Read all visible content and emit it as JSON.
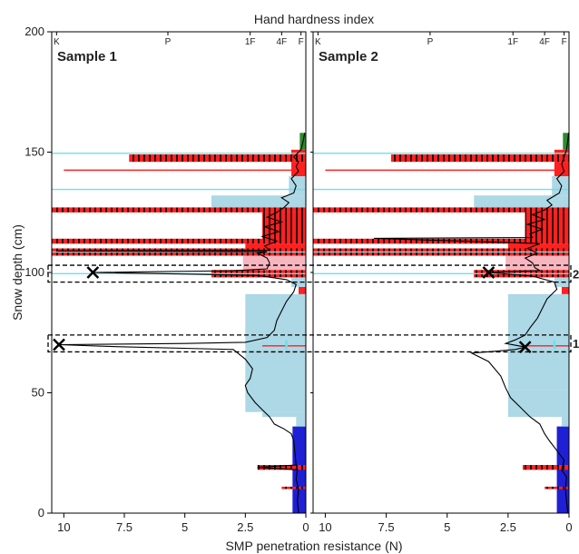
{
  "chart_data": {
    "type": "line",
    "title": "Hand hardness index",
    "xlabel": "SMP penetration resistance (N)",
    "ylabel": "Snow depth (cm)",
    "xlim": [
      10.5,
      0
    ],
    "ylim": [
      0,
      200
    ],
    "x_ticks": [
      10,
      7.5,
      5,
      2.5,
      0
    ],
    "x_tick_labels": [
      "10",
      "7.5",
      "5",
      "2.5",
      "0"
    ],
    "y_ticks": [
      0,
      50,
      100,
      150,
      200
    ],
    "y_tick_labels": [
      "0",
      "50",
      "100",
      "150",
      "200"
    ],
    "hardness_ticks": [
      {
        "label": "K",
        "x": 10.3
      },
      {
        "label": "P",
        "x": 5.7
      },
      {
        "label": "1F",
        "x": 2.3
      },
      {
        "label": "4F",
        "x": 1.0
      },
      {
        "label": "F",
        "x": 0.2
      }
    ],
    "colors": {
      "light_blue": "#add8e6",
      "red": "#ff2020",
      "pink": "#f7b6bf",
      "dark_blue": "#1f1fd6",
      "green": "#2e8b2e",
      "cyan_line": "#6fe0e6",
      "profile": "#000000"
    },
    "band_annotations": [
      {
        "label": "2",
        "depth_range": [
          96,
          103
        ]
      },
      {
        "label": "1",
        "depth_range": [
          67,
          74
        ]
      }
    ],
    "panels": [
      {
        "name": "Sample 1",
        "layers": [
          {
            "from": 0,
            "to": 36,
            "hardness": 0.55,
            "color": "dark_blue"
          },
          {
            "from": 36,
            "to": 40,
            "hardness": 0.4,
            "color": "light_blue"
          },
          {
            "from": 40,
            "to": 42,
            "hardness": 1.8,
            "color": "light_blue"
          },
          {
            "from": 42,
            "to": 91,
            "hardness": 2.5,
            "color": "light_blue"
          },
          {
            "from": 91,
            "to": 94,
            "hardness": 0.3,
            "color": "red"
          },
          {
            "from": 94,
            "to": 98,
            "hardness": 0.6,
            "color": "light_blue"
          },
          {
            "from": 98,
            "to": 101,
            "hardness": 3.9,
            "color": "red"
          },
          {
            "from": 101,
            "to": 107,
            "hardness": 2.6,
            "color": "pink"
          },
          {
            "from": 107,
            "to": 110,
            "hardness": 10.5,
            "color": "red"
          },
          {
            "from": 110,
            "to": 112,
            "hardness": 2.5,
            "color": "red"
          },
          {
            "from": 112,
            "to": 114,
            "hardness": 10.5,
            "color": "red"
          },
          {
            "from": 114,
            "to": 125,
            "hardness": 1.8,
            "color": "red"
          },
          {
            "from": 125,
            "to": 127,
            "hardness": 10.5,
            "color": "red"
          },
          {
            "from": 127,
            "to": 132,
            "hardness": 3.9,
            "color": "light_blue"
          },
          {
            "from": 132,
            "to": 140,
            "hardness": 0.7,
            "color": "light_blue"
          },
          {
            "from": 140,
            "to": 146,
            "hardness": 0.6,
            "color": "red"
          },
          {
            "from": 146,
            "to": 149,
            "hardness": 7.3,
            "color": "red"
          },
          {
            "from": 149,
            "to": 151,
            "hardness": 0.6,
            "color": "red"
          },
          {
            "from": 151,
            "to": 158,
            "hardness": 0.25,
            "color": "green"
          }
        ],
        "hatched_layers": [
          {
            "from": 18,
            "to": 20,
            "hardness": 2.0
          },
          {
            "from": 10,
            "to": 11,
            "hardness": 1.0
          },
          {
            "from": 98,
            "to": 101,
            "hardness": 3.9
          },
          {
            "from": 107,
            "to": 110,
            "hardness": 10.5
          },
          {
            "from": 112,
            "to": 114,
            "hardness": 10.5
          },
          {
            "from": 125,
            "to": 127,
            "hardness": 10.5
          },
          {
            "from": 146,
            "to": 149,
            "hardness": 7.3
          },
          {
            "from": 114,
            "to": 125,
            "hardness": 1.8
          }
        ],
        "red_lines": [
          {
            "depth": 142.5,
            "hardness": 10.0
          },
          {
            "depth": 69.5,
            "hardness": 1.8
          }
        ],
        "cyan_lines": [
          {
            "depth": 149.5,
            "hardness": 10.5
          },
          {
            "depth": 134.5,
            "hardness": 10.5
          },
          {
            "depth": 108.5,
            "hardness": 10.5
          },
          {
            "depth": 99.5,
            "hardness": 10.5
          }
        ],
        "cyan_marks": [
          {
            "depth": 70,
            "hardness": 0.8
          }
        ],
        "markers": [
          {
            "x": 8.8,
            "y": 100
          },
          {
            "x": 10.2,
            "y": 70
          }
        ],
        "profile": [
          [
            0.3,
            0
          ],
          [
            0.35,
            5
          ],
          [
            0.3,
            10
          ],
          [
            0.4,
            14
          ],
          [
            0.35,
            18
          ],
          [
            2.0,
            19
          ],
          [
            0.4,
            20
          ],
          [
            0.45,
            25
          ],
          [
            0.5,
            30
          ],
          [
            0.6,
            33
          ],
          [
            0.9,
            35
          ],
          [
            1.3,
            37
          ],
          [
            1.5,
            40
          ],
          [
            1.8,
            43
          ],
          [
            2.1,
            46
          ],
          [
            2.4,
            50
          ],
          [
            2.5,
            53
          ],
          [
            2.3,
            56
          ],
          [
            2.2,
            60
          ],
          [
            2.5,
            64
          ],
          [
            3.0,
            68
          ],
          [
            8.0,
            69.2
          ],
          [
            10.2,
            70
          ],
          [
            5.0,
            70.5
          ],
          [
            2.5,
            71
          ],
          [
            1.6,
            73
          ],
          [
            1.3,
            76
          ],
          [
            1.2,
            80
          ],
          [
            1.0,
            84
          ],
          [
            0.8,
            88
          ],
          [
            0.5,
            92
          ],
          [
            0.4,
            95
          ],
          [
            0.8,
            97
          ],
          [
            2.0,
            98.8
          ],
          [
            8.8,
            100
          ],
          [
            3.0,
            100.7
          ],
          [
            1.6,
            101.5
          ],
          [
            1.5,
            104
          ],
          [
            1.6,
            106
          ],
          [
            2.0,
            108
          ],
          [
            1.6,
            108.6
          ],
          [
            10.3,
            108.9
          ],
          [
            1.5,
            109.2
          ],
          [
            1.7,
            111
          ],
          [
            1.2,
            113
          ],
          [
            1.8,
            115
          ],
          [
            1.1,
            117
          ],
          [
            1.7,
            119
          ],
          [
            1.0,
            121
          ],
          [
            1.6,
            123
          ],
          [
            1.2,
            125
          ],
          [
            0.9,
            127
          ],
          [
            0.7,
            129
          ],
          [
            1.0,
            131
          ],
          [
            0.5,
            133
          ],
          [
            0.4,
            136
          ],
          [
            0.6,
            139
          ],
          [
            0.3,
            142
          ],
          [
            0.4,
            144
          ],
          [
            0.3,
            146
          ],
          [
            0.5,
            148
          ],
          [
            0.2,
            151
          ],
          [
            0.1,
            155
          ],
          [
            0.05,
            158
          ]
        ]
      },
      {
        "name": "Sample 2",
        "layers": [
          {
            "from": 0,
            "to": 36,
            "hardness": 0.5,
            "color": "dark_blue"
          },
          {
            "from": 36,
            "to": 40,
            "hardness": 0.3,
            "color": "light_blue"
          },
          {
            "from": 40,
            "to": 51,
            "hardness": 2.5,
            "color": "light_blue"
          },
          {
            "from": 51,
            "to": 91,
            "hardness": 2.5,
            "color": "light_blue"
          },
          {
            "from": 91,
            "to": 94,
            "hardness": 0.3,
            "color": "red"
          },
          {
            "from": 94,
            "to": 98,
            "hardness": 0.6,
            "color": "light_blue"
          },
          {
            "from": 98,
            "to": 101,
            "hardness": 3.9,
            "color": "red"
          },
          {
            "from": 101,
            "to": 107,
            "hardness": 2.6,
            "color": "pink"
          },
          {
            "from": 107,
            "to": 110,
            "hardness": 10.5,
            "color": "red"
          },
          {
            "from": 110,
            "to": 112,
            "hardness": 2.5,
            "color": "red"
          },
          {
            "from": 112,
            "to": 114,
            "hardness": 10.5,
            "color": "red"
          },
          {
            "from": 114,
            "to": 125,
            "hardness": 1.8,
            "color": "red"
          },
          {
            "from": 125,
            "to": 127,
            "hardness": 10.5,
            "color": "red"
          },
          {
            "from": 127,
            "to": 132,
            "hardness": 3.9,
            "color": "light_blue"
          },
          {
            "from": 132,
            "to": 140,
            "hardness": 0.7,
            "color": "light_blue"
          },
          {
            "from": 140,
            "to": 146,
            "hardness": 0.6,
            "color": "red"
          },
          {
            "from": 146,
            "to": 149,
            "hardness": 7.3,
            "color": "red"
          },
          {
            "from": 149,
            "to": 151,
            "hardness": 0.6,
            "color": "red"
          },
          {
            "from": 151,
            "to": 158,
            "hardness": 0.25,
            "color": "green"
          }
        ],
        "hatched_layers": [
          {
            "from": 18,
            "to": 20,
            "hardness": 1.9
          },
          {
            "from": 10,
            "to": 11,
            "hardness": 1.0
          },
          {
            "from": 98,
            "to": 101,
            "hardness": 3.9
          },
          {
            "from": 107,
            "to": 110,
            "hardness": 10.5
          },
          {
            "from": 112,
            "to": 114,
            "hardness": 10.5
          },
          {
            "from": 125,
            "to": 127,
            "hardness": 10.5
          },
          {
            "from": 146,
            "to": 149,
            "hardness": 7.3
          },
          {
            "from": 114,
            "to": 125,
            "hardness": 1.8
          }
        ],
        "red_lines": [
          {
            "depth": 142.5,
            "hardness": 10.0
          },
          {
            "depth": 69.5,
            "hardness": 1.8
          }
        ],
        "cyan_lines": [
          {
            "depth": 149.5,
            "hardness": 10.5
          },
          {
            "depth": 134.5,
            "hardness": 10.5
          },
          {
            "depth": 108.5,
            "hardness": 10.5
          },
          {
            "depth": 99.5,
            "hardness": 10.5
          }
        ],
        "cyan_marks": [
          {
            "depth": 70,
            "hardness": 0.6
          }
        ],
        "markers": [
          {
            "x": 3.3,
            "y": 100
          },
          {
            "x": 1.8,
            "y": 69
          }
        ],
        "profile": [
          [
            0.05,
            0
          ],
          [
            0.1,
            5
          ],
          [
            0.15,
            10
          ],
          [
            0.1,
            15
          ],
          [
            0.3,
            18
          ],
          [
            0.2,
            22
          ],
          [
            0.5,
            26
          ],
          [
            0.8,
            30
          ],
          [
            1.0,
            33
          ],
          [
            1.2,
            37
          ],
          [
            1.6,
            40
          ],
          [
            2.0,
            44
          ],
          [
            2.4,
            48
          ],
          [
            2.6,
            52
          ],
          [
            2.8,
            57
          ],
          [
            3.3,
            63
          ],
          [
            4.0,
            66.5
          ],
          [
            3.0,
            67.3
          ],
          [
            2.2,
            68
          ],
          [
            1.8,
            69
          ],
          [
            2.6,
            70.5
          ],
          [
            2.2,
            72
          ],
          [
            1.8,
            74
          ],
          [
            1.6,
            77
          ],
          [
            1.3,
            81
          ],
          [
            1.1,
            85
          ],
          [
            0.9,
            89
          ],
          [
            0.5,
            93
          ],
          [
            0.6,
            96
          ],
          [
            1.5,
            98.5
          ],
          [
            3.3,
            100
          ],
          [
            1.2,
            100.8
          ],
          [
            1.4,
            102
          ],
          [
            1.5,
            104
          ],
          [
            1.8,
            106
          ],
          [
            1.3,
            108
          ],
          [
            1.7,
            110
          ],
          [
            1.2,
            112
          ],
          [
            8.0,
            114.2
          ],
          [
            1.5,
            114.5
          ],
          [
            1.6,
            116
          ],
          [
            1.1,
            118
          ],
          [
            1.7,
            120
          ],
          [
            1.0,
            122
          ],
          [
            1.5,
            124
          ],
          [
            1.0,
            126
          ],
          [
            0.7,
            128
          ],
          [
            0.9,
            130
          ],
          [
            0.4,
            133
          ],
          [
            0.3,
            136
          ],
          [
            0.5,
            139
          ],
          [
            0.2,
            142
          ],
          [
            0.3,
            145
          ],
          [
            0.2,
            148
          ],
          [
            0.1,
            151
          ],
          [
            0.05,
            155
          ],
          [
            0.02,
            158
          ]
        ]
      }
    ]
  }
}
